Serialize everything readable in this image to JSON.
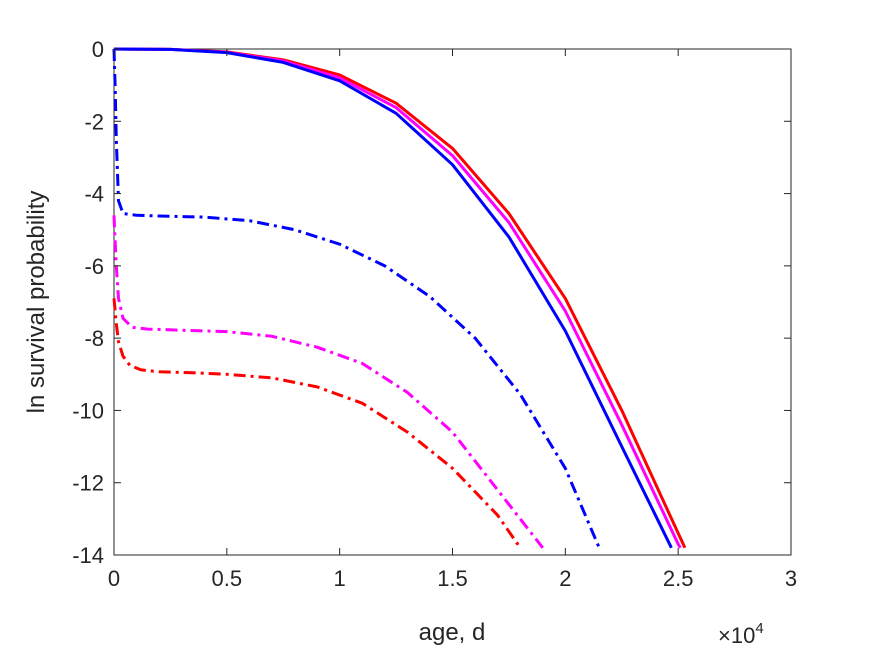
{
  "chart_data": {
    "type": "line",
    "xlabel": "age, d",
    "ylabel": "ln survival probability",
    "x_multiplier": {
      "base": "×10",
      "exponent": "4"
    },
    "xlim": [
      0,
      3
    ],
    "ylim": [
      -14,
      0
    ],
    "x_ticks": [
      "0",
      "0.5",
      "1",
      "1.5",
      "2",
      "2.5",
      "3"
    ],
    "y_ticks": [
      "0",
      "-2",
      "-4",
      "-6",
      "-8",
      "-10",
      "-12",
      "-14"
    ],
    "grid": false,
    "legend": "none",
    "series": [
      {
        "color": "#ff0000",
        "style": "solid",
        "x": [
          0,
          0.25,
          0.5,
          0.75,
          1.0,
          1.25,
          1.5,
          1.75,
          2.0,
          2.25,
          2.5,
          2.53
        ],
        "y": [
          0,
          -0.01,
          -0.08,
          -0.3,
          -0.72,
          -1.5,
          -2.75,
          -4.55,
          -6.9,
          -10.0,
          -13.4,
          -13.8
        ]
      },
      {
        "color": "#ff00ff",
        "style": "solid",
        "x": [
          0,
          0.25,
          0.5,
          0.75,
          1.0,
          1.25,
          1.5,
          1.75,
          2.0,
          2.25,
          2.5,
          2.51
        ],
        "y": [
          0,
          -0.01,
          -0.09,
          -0.33,
          -0.8,
          -1.62,
          -2.95,
          -4.8,
          -7.25,
          -10.4,
          -13.7,
          -13.8
        ]
      },
      {
        "color": "#0000ff",
        "style": "solid",
        "x": [
          0,
          0.25,
          0.5,
          0.75,
          1.0,
          1.25,
          1.5,
          1.75,
          2.0,
          2.25,
          2.47
        ],
        "y": [
          0,
          -0.01,
          -0.1,
          -0.37,
          -0.88,
          -1.78,
          -3.2,
          -5.2,
          -7.8,
          -11.0,
          -13.8
        ]
      },
      {
        "color": "#0000ff",
        "style": "dashdot",
        "x": [
          0.0,
          0.005,
          0.01,
          0.02,
          0.04,
          0.1,
          0.2,
          0.4,
          0.6,
          0.8,
          1.0,
          1.2,
          1.4,
          1.6,
          1.8,
          2.0,
          2.15
        ],
        "y": [
          0,
          -1.0,
          -2.5,
          -4.2,
          -4.55,
          -4.6,
          -4.62,
          -4.65,
          -4.75,
          -5.0,
          -5.4,
          -6.0,
          -6.85,
          -8.0,
          -9.55,
          -11.6,
          -13.8
        ]
      },
      {
        "color": "#ff00ff",
        "style": "dashdot",
        "x": [
          0.0,
          0.005,
          0.01,
          0.02,
          0.04,
          0.08,
          0.15,
          0.3,
          0.5,
          0.7,
          0.9,
          1.1,
          1.3,
          1.5,
          1.7,
          1.8,
          1.9
        ],
        "y": [
          -4.6,
          -5.3,
          -6.0,
          -6.9,
          -7.45,
          -7.7,
          -7.75,
          -7.78,
          -7.82,
          -7.95,
          -8.25,
          -8.7,
          -9.5,
          -10.6,
          -12.2,
          -13.0,
          -13.8
        ]
      },
      {
        "color": "#ff0000",
        "style": "dashdot",
        "x": [
          0.0,
          0.01,
          0.02,
          0.04,
          0.07,
          0.12,
          0.2,
          0.35,
          0.5,
          0.7,
          0.9,
          1.1,
          1.3,
          1.5,
          1.7,
          1.8
        ],
        "y": [
          -6.9,
          -7.6,
          -8.1,
          -8.5,
          -8.75,
          -8.88,
          -8.93,
          -8.96,
          -9.0,
          -9.1,
          -9.35,
          -9.8,
          -10.6,
          -11.6,
          -12.9,
          -13.8
        ]
      }
    ]
  }
}
